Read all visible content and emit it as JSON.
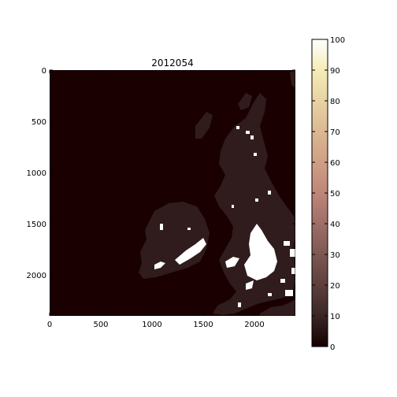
{
  "chart_data": {
    "type": "heatmap",
    "title": "2012054",
    "xlabel": "",
    "ylabel": "",
    "xlim": [
      0,
      2400
    ],
    "ylim": [
      2400,
      0
    ],
    "x_ticks": [
      0,
      500,
      1000,
      1500,
      2000
    ],
    "y_ticks": [
      0,
      500,
      1000,
      1500,
      2000
    ],
    "colorbar": {
      "range": [
        0,
        100
      ],
      "ticks": [
        0,
        10,
        20,
        30,
        40,
        50,
        60,
        70,
        80,
        90,
        100
      ],
      "colors": [
        "#150000",
        "#3a2626",
        "#5d3e3c",
        "#7e5752",
        "#9e6e67",
        "#be8678",
        "#cf9f85",
        "#dbb893",
        "#e8d2a3",
        "#f5ecb6",
        "#ffffff"
      ]
    },
    "background_color": "#1a0000",
    "land_color": "#301c1c",
    "high_value_color": "#ffffff",
    "grid": false,
    "legend": "colorbar-right"
  }
}
